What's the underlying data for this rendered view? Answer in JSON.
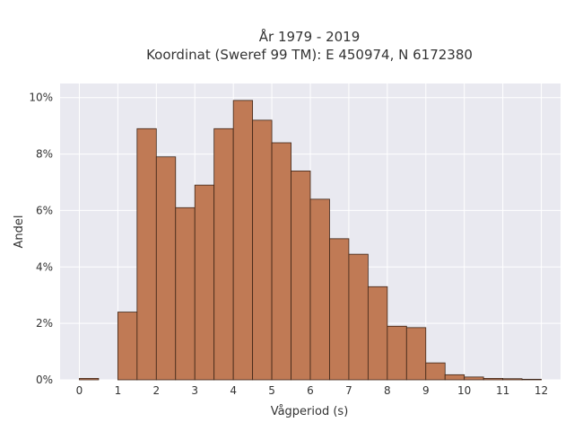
{
  "chart_data": {
    "type": "bar",
    "title_line1": "År 1979 - 2019",
    "title_line2": "Koordinat (Sweref 99 TM): E 450974, N 6172380",
    "xlabel": "Vågperiod (s)",
    "ylabel": "Andel",
    "x_ticks": [
      "0",
      "1",
      "2",
      "3",
      "4",
      "5",
      "6",
      "7",
      "8",
      "9",
      "10",
      "11",
      "12"
    ],
    "y_ticks": [
      "0%",
      "2%",
      "4%",
      "6%",
      "8%",
      "10%"
    ],
    "xlim": [
      -0.5,
      12.5
    ],
    "ylim": [
      0,
      10.5
    ],
    "bin_width": 0.5,
    "bins_left": [
      0,
      1,
      1.5,
      2,
      2.5,
      3,
      3.5,
      4,
      4.5,
      5,
      5.5,
      6,
      6.5,
      7,
      7.5,
      8,
      8.5,
      9,
      9.5,
      10,
      10.5,
      11,
      11.5
    ],
    "values": [
      0.05,
      2.4,
      8.9,
      7.9,
      6.1,
      6.9,
      8.9,
      9.9,
      9.2,
      8.4,
      7.4,
      6.4,
      5.0,
      4.45,
      3.3,
      1.9,
      1.85,
      0.6,
      0.18,
      0.1,
      0.05,
      0.04,
      0.02
    ],
    "grid": true,
    "colors": {
      "bar_fill": "#c07a55",
      "bar_stroke": "#3d2416",
      "plot_bg": "#e9e9f0",
      "grid": "#ffffff"
    }
  }
}
